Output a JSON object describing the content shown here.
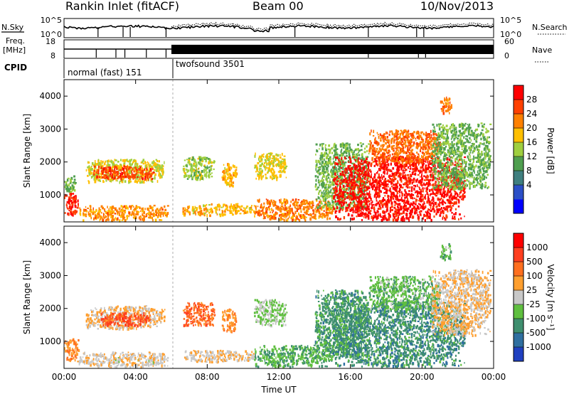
{
  "header": {
    "station": "Rankin Inlet (fitACF)",
    "beam": "Beam 00",
    "date": "10/Nov/2013"
  },
  "status_panels": {
    "nsky": {
      "label": "N.Sky",
      "ticks": [
        "10^5",
        "10^0"
      ]
    },
    "nsearch": {
      "label": "N.Search",
      "ticks": [
        "10^5",
        "10^0"
      ]
    },
    "freq": {
      "label_line1": "Freq.",
      "label_line2": "[MHz]",
      "ticks": [
        "18",
        "8"
      ]
    },
    "nave": {
      "label": "Nave",
      "ticks": [
        "60",
        "0"
      ]
    },
    "cpid": {
      "label": "CPID"
    },
    "modes": [
      {
        "name": "normal (fast) 151",
        "start_hour": 0.0,
        "end_hour": 6.0
      },
      {
        "name": "twofsound 3501",
        "start_hour": 6.0,
        "end_hour": 24.0
      }
    ]
  },
  "colorbars": {
    "power": {
      "label": "Power [dB]",
      "ticks": [
        "28",
        "24",
        "20",
        "16",
        "12",
        "8",
        "4"
      ],
      "colors": [
        "#0000ff",
        "#2b4fc7",
        "#3f7f7f",
        "#4f9f4f",
        "#9fcf3f",
        "#ffbf00",
        "#ff8000",
        "#ff4000",
        "#ff0000"
      ]
    },
    "velocity": {
      "label": "Velocity [m s⁻¹]",
      "ticks": [
        "1000",
        "500",
        "100",
        "25",
        "-25",
        "-100",
        "-500",
        "-1000"
      ],
      "colors": [
        "#2040c0",
        "#2f6fa0",
        "#3f8f6f",
        "#5fbf3f",
        "#c8c8c8",
        "#ff9f2f",
        "#ff6f1f",
        "#ff3f1f",
        "#ff0000"
      ]
    }
  },
  "axis_labels": {
    "ylabel": "Slant Range [km]",
    "xlabel": "Time UT"
  },
  "chart_data": [
    {
      "type": "heatmap",
      "panel": "power",
      "ylabel": "Slant Range [km]",
      "xlabel": "",
      "xlim": [
        0,
        24
      ],
      "ylim": [
        180,
        4500
      ],
      "yticks": [
        "4000",
        "3000",
        "2000",
        "1000"
      ],
      "xticks": [],
      "colorbar_label": "Power [dB]",
      "value_range": [
        0,
        30
      ],
      "regions": [
        {
          "t0": 0.0,
          "t1": 0.8,
          "r0": 400,
          "r1": 1100,
          "value": 27
        },
        {
          "t0": 0.0,
          "t1": 0.6,
          "r0": 1100,
          "r1": 1600,
          "value": 13
        },
        {
          "t0": 1.2,
          "t1": 5.6,
          "r0": 1400,
          "r1": 2100,
          "value": 17
        },
        {
          "t0": 1.6,
          "t1": 5.0,
          "r0": 1500,
          "r1": 1900,
          "value": 25
        },
        {
          "t0": 0.8,
          "t1": 5.8,
          "r0": 250,
          "r1": 700,
          "value": 21
        },
        {
          "t0": 6.6,
          "t1": 10.6,
          "r0": 400,
          "r1": 750,
          "value": 19
        },
        {
          "t0": 6.6,
          "t1": 8.4,
          "r0": 1500,
          "r1": 2200,
          "value": 15
        },
        {
          "t0": 8.8,
          "t1": 9.6,
          "r0": 1300,
          "r1": 2000,
          "value": 19
        },
        {
          "t0": 10.6,
          "t1": 12.4,
          "r0": 1500,
          "r1": 2300,
          "value": 17
        },
        {
          "t0": 10.6,
          "t1": 15.0,
          "r0": 250,
          "r1": 900,
          "value": 22
        },
        {
          "t0": 14.0,
          "t1": 17.0,
          "r0": 600,
          "r1": 2600,
          "value": 13
        },
        {
          "t0": 15.0,
          "t1": 22.4,
          "r0": 250,
          "r1": 2200,
          "value": 28
        },
        {
          "t0": 17.0,
          "t1": 21.0,
          "r0": 2000,
          "r1": 3000,
          "value": 23
        },
        {
          "t0": 20.5,
          "t1": 23.8,
          "r0": 1200,
          "r1": 3200,
          "value": 13
        },
        {
          "t0": 21.0,
          "t1": 21.6,
          "r0": 3500,
          "r1": 4000,
          "value": 22
        }
      ]
    },
    {
      "type": "heatmap",
      "panel": "velocity",
      "ylabel": "Slant Range [km]",
      "xlabel": "Time UT",
      "xlim": [
        0,
        24
      ],
      "ylim": [
        180,
        4500
      ],
      "yticks": [
        "4000",
        "3000",
        "2000",
        "1000"
      ],
      "xticks": [
        "00:00",
        "04:00",
        "08:00",
        "12:00",
        "16:00",
        "20:00",
        "00:00"
      ],
      "colorbar_label": "Velocity [m s⁻¹]",
      "value_range": [
        -1000,
        1000
      ],
      "regions": [
        {
          "t0": 0.0,
          "t1": 0.8,
          "r0": 400,
          "r1": 1100,
          "value": 300
        },
        {
          "t0": 1.2,
          "t1": 5.6,
          "r0": 1400,
          "r1": 2100,
          "value": 150
        },
        {
          "t0": 2.0,
          "t1": 4.8,
          "r0": 1500,
          "r1": 1900,
          "value": 600
        },
        {
          "t0": 0.8,
          "t1": 5.8,
          "r0": 250,
          "r1": 700,
          "value": 60
        },
        {
          "t0": 6.6,
          "t1": 10.6,
          "r0": 400,
          "r1": 750,
          "value": 90
        },
        {
          "t0": 6.6,
          "t1": 8.4,
          "r0": 1500,
          "r1": 2200,
          "value": 500
        },
        {
          "t0": 8.8,
          "t1": 9.6,
          "r0": 1300,
          "r1": 2000,
          "value": 300
        },
        {
          "t0": 10.6,
          "t1": 12.4,
          "r0": 1500,
          "r1": 2300,
          "value": -150
        },
        {
          "t0": 10.6,
          "t1": 15.0,
          "r0": 250,
          "r1": 900,
          "value": -300
        },
        {
          "t0": 14.0,
          "t1": 17.0,
          "r0": 600,
          "r1": 2600,
          "value": -400
        },
        {
          "t0": 15.0,
          "t1": 22.4,
          "r0": 250,
          "r1": 2200,
          "value": -450
        },
        {
          "t0": 17.0,
          "t1": 21.0,
          "r0": 2000,
          "r1": 3000,
          "value": -250
        },
        {
          "t0": 20.5,
          "t1": 23.8,
          "r0": 1200,
          "r1": 3200,
          "value": 120
        },
        {
          "t0": 21.0,
          "t1": 21.6,
          "r0": 3500,
          "r1": 4000,
          "value": -200
        }
      ]
    }
  ]
}
